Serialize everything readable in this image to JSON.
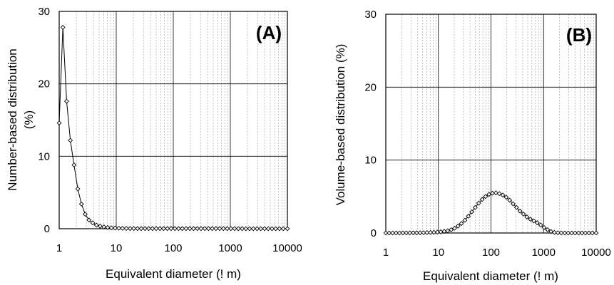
{
  "chart_data": [
    {
      "type": "line",
      "panel_label": "(A)",
      "xlabel": "Equivalent diameter (! m)",
      "ylabel_lines": [
        "Number-based distribution",
        "(%)"
      ],
      "xscale": "log",
      "xlim": [
        1,
        10000
      ],
      "ylim": [
        0,
        30
      ],
      "x_ticks": [
        "1",
        "10",
        "100",
        "1000",
        "10000"
      ],
      "y_ticks": [
        "0",
        "10",
        "20",
        "30"
      ],
      "grid": true,
      "legend": "none",
      "series": [
        {
          "marker": "diamond",
          "x": [
            1.0,
            1.16,
            1.35,
            1.57,
            1.82,
            2.12,
            2.46,
            2.86,
            3.33,
            3.87,
            4.5,
            5.23,
            6.08,
            7.07,
            8.22,
            9.56,
            11.1,
            12.9,
            15.0,
            17.5,
            20.3,
            23.6,
            27.4,
            31.9,
            37.1,
            43.1,
            50.1,
            58.3,
            67.8,
            78.8,
            91.6,
            106.5,
            123.8,
            144,
            167.5,
            194.7,
            226.4,
            263.3,
            306.1,
            356,
            414,
            481.3,
            559.6,
            650.7,
            756.6,
            879.8,
            1023,
            1190,
            1383,
            1608,
            1870,
            2174,
            2528,
            2940,
            3419,
            3975,
            4623,
            5375,
            6250,
            7268,
            8451,
            10000
          ],
          "y": [
            14.6,
            27.8,
            17.6,
            12.2,
            8.8,
            5.5,
            3.4,
            2.0,
            1.2,
            0.8,
            0.5,
            0.35,
            0.25,
            0.18,
            0.12,
            0.09,
            0.07,
            0.05,
            0.04,
            0.03,
            0.03,
            0.02,
            0.02,
            0.02,
            0.02,
            0.02,
            0.02,
            0.02,
            0.02,
            0.02,
            0.02,
            0.02,
            0.02,
            0.02,
            0.02,
            0.02,
            0.02,
            0.02,
            0.02,
            0.02,
            0.02,
            0.02,
            0.02,
            0.02,
            0.02,
            0.01,
            0.01,
            0.01,
            0.01,
            0.01,
            0.0,
            0.0,
            0.0,
            0.0,
            0.0,
            0.0,
            0.0,
            0.0,
            0.0,
            0.0,
            0.0,
            0.0
          ]
        }
      ]
    },
    {
      "type": "line",
      "panel_label": "(B)",
      "xlabel": "Equivalent diameter (! m)",
      "ylabel_lines": [
        "Volume-based distribution (%)"
      ],
      "xscale": "log",
      "xlim": [
        1,
        10000
      ],
      "ylim": [
        0,
        30
      ],
      "x_ticks": [
        "1",
        "10",
        "100",
        "1000",
        "10000"
      ],
      "y_ticks": [
        "0",
        "10",
        "20",
        "30"
      ],
      "grid": true,
      "legend": "none",
      "series": [
        {
          "marker": "diamond",
          "x": [
            1.0,
            1.16,
            1.35,
            1.57,
            1.82,
            2.12,
            2.46,
            2.86,
            3.33,
            3.87,
            4.5,
            5.23,
            6.08,
            7.07,
            8.22,
            9.56,
            11.1,
            12.9,
            15.0,
            17.5,
            20.3,
            23.6,
            27.4,
            31.9,
            37.1,
            43.1,
            50.1,
            58.3,
            67.8,
            78.8,
            91.6,
            106.5,
            123.8,
            144,
            167.5,
            194.7,
            226.4,
            263.3,
            306.1,
            356,
            414,
            481.3,
            559.6,
            650.7,
            756.6,
            879.8,
            1023,
            1190,
            1383,
            1608,
            1870,
            2174,
            2528,
            2940,
            3419,
            3975,
            4623,
            5375,
            6250,
            7268,
            8451,
            10000
          ],
          "y": [
            0.0,
            0.0,
            0.0,
            0.0,
            0.0,
            0.01,
            0.01,
            0.01,
            0.02,
            0.02,
            0.03,
            0.04,
            0.05,
            0.07,
            0.09,
            0.12,
            0.16,
            0.22,
            0.3,
            0.45,
            0.65,
            0.95,
            1.3,
            1.75,
            2.3,
            2.9,
            3.5,
            4.1,
            4.6,
            5.0,
            5.3,
            5.45,
            5.5,
            5.4,
            5.2,
            4.9,
            4.5,
            4.0,
            3.5,
            3.0,
            2.6,
            2.2,
            1.9,
            1.65,
            1.4,
            1.1,
            0.75,
            0.45,
            0.2,
            0.08,
            0.03,
            0.01,
            0.0,
            0.0,
            0.0,
            0.0,
            0.0,
            0.0,
            0.0,
            0.0,
            0.0,
            0.0
          ]
        }
      ]
    }
  ]
}
